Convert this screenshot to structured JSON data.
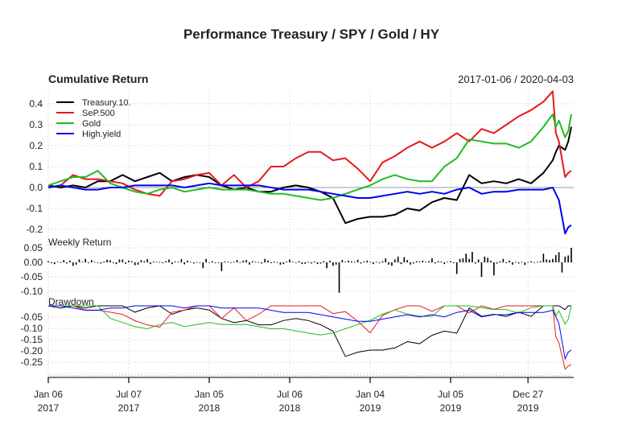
{
  "chart_data": [
    {
      "type": "line",
      "figure_title": "Performance Treasury / SPY / Gold / HY",
      "title": "Cumulative Return",
      "date_range": "2017-01-06 / 2020-04-03",
      "ylim": [
        -0.2,
        0.45
      ],
      "yticks": [
        "0.4",
        "0.3",
        "0.2",
        "0.1",
        "0.0",
        "-0.1",
        "-0.2"
      ],
      "ytick_values": [
        0.4,
        0.3,
        0.2,
        0.1,
        0.0,
        -0.1,
        -0.2
      ],
      "grid": true,
      "legend_position": "top-left",
      "x": [
        "2017-01-06",
        "2017-02-03",
        "2017-03-03",
        "2017-03-31",
        "2017-04-28",
        "2017-05-26",
        "2017-06-23",
        "2017-07-21",
        "2017-08-18",
        "2017-09-15",
        "2017-10-13",
        "2017-11-10",
        "2017-12-08",
        "2018-01-05",
        "2018-02-02",
        "2018-03-02",
        "2018-03-30",
        "2018-04-27",
        "2018-05-25",
        "2018-06-22",
        "2018-07-20",
        "2018-08-17",
        "2018-09-14",
        "2018-10-12",
        "2018-11-09",
        "2018-12-07",
        "2019-01-04",
        "2019-02-01",
        "2019-03-01",
        "2019-03-29",
        "2019-04-26",
        "2019-05-24",
        "2019-06-21",
        "2019-07-19",
        "2019-08-16",
        "2019-09-13",
        "2019-10-11",
        "2019-11-08",
        "2019-12-06",
        "2020-01-03",
        "2020-01-31",
        "2020-02-21",
        "2020-02-28",
        "2020-03-06",
        "2020-03-20",
        "2020-03-27",
        "2020-04-03"
      ],
      "series": [
        {
          "name": "Treasury.10.",
          "color": "#000000",
          "values": [
            0.01,
            0.0,
            0.01,
            0.0,
            0.03,
            0.03,
            0.06,
            0.03,
            0.05,
            0.07,
            0.03,
            0.05,
            0.06,
            0.05,
            0.01,
            -0.01,
            0.0,
            -0.02,
            -0.02,
            0.0,
            0.01,
            0.0,
            -0.02,
            -0.05,
            -0.17,
            -0.15,
            -0.14,
            -0.14,
            -0.13,
            -0.1,
            -0.11,
            -0.07,
            -0.05,
            -0.06,
            0.06,
            0.02,
            0.03,
            0.02,
            0.04,
            0.02,
            0.07,
            0.13,
            0.17,
            0.2,
            0.18,
            0.22,
            0.29
          ]
        },
        {
          "name": "SeP.500",
          "color": "#e41a1c",
          "values": [
            0.0,
            0.01,
            0.06,
            0.04,
            0.04,
            0.03,
            0.02,
            -0.01,
            -0.03,
            -0.04,
            0.03,
            0.04,
            0.06,
            0.07,
            0.01,
            0.06,
            0.0,
            0.03,
            0.1,
            0.1,
            0.14,
            0.17,
            0.17,
            0.13,
            0.14,
            0.09,
            0.03,
            0.12,
            0.15,
            0.19,
            0.22,
            0.19,
            0.22,
            0.26,
            0.22,
            0.28,
            0.26,
            0.3,
            0.34,
            0.37,
            0.41,
            0.46,
            0.26,
            0.22,
            0.05,
            0.07,
            0.08
          ]
        },
        {
          "name": "Gold",
          "color": "#22bb22",
          "values": [
            0.01,
            0.03,
            0.05,
            0.05,
            0.08,
            0.02,
            0.0,
            -0.02,
            -0.03,
            -0.01,
            0.0,
            -0.02,
            -0.01,
            0.0,
            -0.01,
            -0.01,
            -0.01,
            -0.02,
            -0.03,
            -0.03,
            -0.04,
            -0.05,
            -0.06,
            -0.05,
            -0.03,
            -0.01,
            0.01,
            0.04,
            0.06,
            0.04,
            0.03,
            0.03,
            0.1,
            0.14,
            0.23,
            0.22,
            0.21,
            0.21,
            0.19,
            0.22,
            0.29,
            0.35,
            0.29,
            0.32,
            0.24,
            0.27,
            0.35
          ]
        },
        {
          "name": "High.yield",
          "color": "#0000ee",
          "values": [
            0.0,
            0.01,
            0.0,
            -0.01,
            -0.01,
            0.0,
            0.0,
            0.01,
            0.01,
            0.01,
            0.01,
            0.0,
            0.01,
            0.02,
            0.01,
            0.01,
            0.01,
            0.01,
            0.0,
            -0.01,
            -0.01,
            -0.01,
            -0.02,
            -0.03,
            -0.04,
            -0.05,
            -0.05,
            -0.04,
            -0.03,
            -0.02,
            -0.03,
            -0.02,
            -0.03,
            -0.01,
            0.0,
            -0.03,
            -0.02,
            -0.02,
            -0.01,
            -0.01,
            -0.01,
            0.0,
            -0.03,
            -0.06,
            -0.22,
            -0.19,
            -0.18
          ]
        }
      ]
    },
    {
      "type": "bar",
      "title": "Weekly Return",
      "start_date": "2017-01-06",
      "yticks": [
        "0.05",
        "0.00",
        "-0.05",
        "-0.10"
      ],
      "ytick_values": [
        0.05,
        0.0,
        -0.05,
        -0.1
      ],
      "grid": true,
      "values": [
        0.004,
        -0.003,
        -0.006,
        0.002,
        -0.002,
        0.008,
        -0.004,
        0.006,
        -0.012,
        -0.008,
        0.01,
        0.002,
        0.012,
        -0.003,
        0.008,
        0.002,
        0.0,
        -0.004,
        0.003,
        0.009,
        0.007,
        -0.003,
        -0.006,
        0.01,
        0.01,
        -0.005,
        0.006,
        0.004,
        -0.01,
        -0.008,
        0.008,
        0.004,
        0.011,
        -0.006,
        0.003,
        0.002,
        0.001,
        -0.003,
        0.004,
        0.01,
        -0.006,
        0.003,
        0.002,
        0.011,
        -0.007,
        0.006,
        0.002,
        -0.004,
        0.001,
        -0.002,
        -0.02,
        0.012,
        -0.002,
        0.004,
        0.0,
        -0.001,
        -0.03,
        0.003,
        0.002,
        -0.001,
        0.002,
        0.008,
        -0.002,
        0.006,
        0.008,
        -0.008,
        0.004,
        0.002,
        0.001,
        -0.004,
        0.012,
        0.006,
        -0.003,
        0.003,
        0.001,
        -0.008,
        -0.006,
        0.003,
        0.01,
        0.002,
        -0.002,
        0.004,
        -0.006,
        -0.005,
        0.002,
        -0.004,
        0.003,
        -0.006,
        -0.004,
        0.004,
        -0.02,
        0.006,
        -0.012,
        -0.008,
        -0.105,
        0.008,
        0.002,
        0.006,
        0.004,
        0.002,
        0.009,
        -0.004,
        0.003,
        0.006,
        0.002,
        -0.006,
        0.002,
        -0.003,
        0.004,
        0.014,
        -0.008,
        -0.012,
        0.01,
        0.02,
        -0.006,
        0.018,
        0.008,
        -0.008,
        -0.004,
        0.004,
        0.003,
        0.006,
        0.002,
        0.004,
        0.014,
        -0.004,
        0.004,
        0.003,
        -0.006,
        0.002,
        0.004,
        -0.003,
        -0.04,
        0.012,
        0.014,
        0.03,
        0.012,
        0.036,
        -0.004,
        0.01,
        -0.05,
        0.02,
        0.016,
        0.006,
        -0.045,
        -0.004,
        0.004,
        0.012,
        -0.003,
        0.006,
        -0.008,
        0.002,
        -0.004,
        0.002,
        -0.009,
        0.001,
        0.004,
        -0.002,
        0.002,
        0.004,
        0.03,
        0.01,
        0.008,
        0.012,
        0.025,
        0.035,
        -0.035,
        0.02,
        0.024,
        0.05
      ]
    },
    {
      "type": "line",
      "title": "Drawdown",
      "yticks": [
        "-0.05",
        "-0.10",
        "-0.15",
        "-0.20",
        "-0.25"
      ],
      "ytick_values": [
        -0.05,
        -0.1,
        -0.15,
        -0.2,
        -0.25
      ],
      "grid": true
    }
  ],
  "x_axis": {
    "ticks": [
      {
        "date": "2017-01-06",
        "label": "Jan 06",
        "year": "2017"
      },
      {
        "date": "2017-07-07",
        "label": "Jul 07",
        "year": "2017"
      },
      {
        "date": "2018-01-05",
        "label": "Jan 05",
        "year": "2018"
      },
      {
        "date": "2018-07-06",
        "label": "Jul 06",
        "year": "2018"
      },
      {
        "date": "2019-01-04",
        "label": "Jan 04",
        "year": "2019"
      },
      {
        "date": "2019-07-05",
        "label": "Jul 05",
        "year": "2019"
      },
      {
        "date": "2019-12-27",
        "label": "Dec 27",
        "year": "2019"
      }
    ]
  }
}
